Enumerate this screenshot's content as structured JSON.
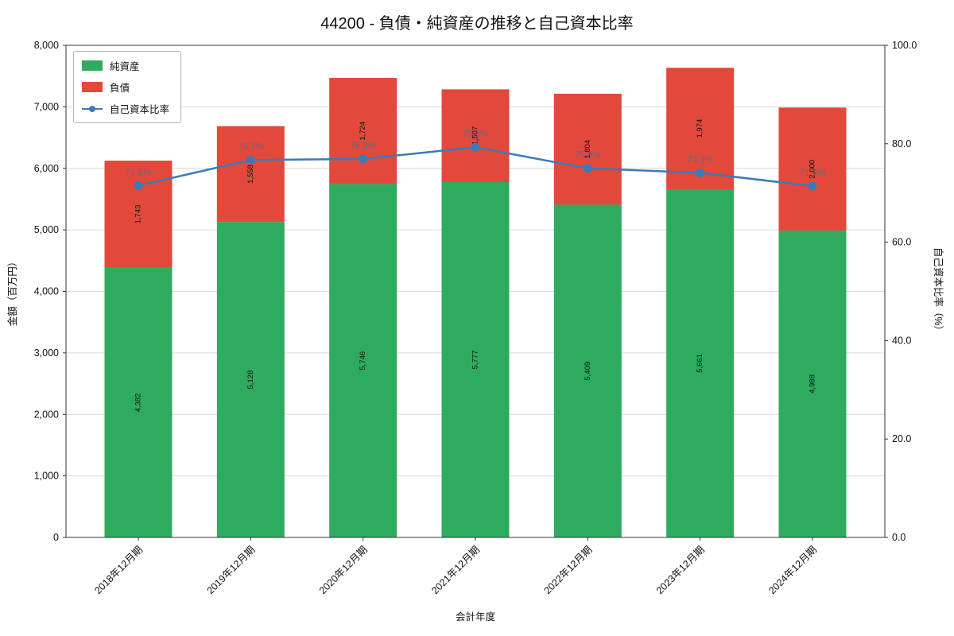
{
  "title": "44200 - 負債・純資産の推移と自己資本比率",
  "axes": {
    "x_label": "会計年度",
    "y_left_label": "金額（百万円）",
    "y_right_label": "自己資本比率（%）",
    "y_left_ticks": [
      "0",
      "1,000",
      "2,000",
      "3,000",
      "4,000",
      "5,000",
      "6,000",
      "7,000",
      "8,000"
    ],
    "y_right_ticks": [
      "0.0",
      "20.0",
      "40.0",
      "60.0",
      "80.0",
      "100.0"
    ]
  },
  "legend": {
    "items": [
      {
        "label": "純資産",
        "color": "#2eab5f",
        "marker": "square"
      },
      {
        "label": "負債",
        "color": "#e2493b",
        "marker": "square"
      },
      {
        "label": "自己資本比率",
        "color": "#3d7ab5",
        "marker": "line-dot"
      }
    ]
  },
  "chart_data": {
    "type": "bar",
    "subtype": "stacked-bars-with-line",
    "categories": [
      "2018年12月期",
      "2019年12月期",
      "2020年12月期",
      "2021年12月期",
      "2022年12月期",
      "2023年12月期",
      "2024年12月期"
    ],
    "series": [
      {
        "name": "純資産",
        "type": "bar",
        "color": "#2eab5f",
        "values": [
          4382,
          5128,
          5746,
          5777,
          5409,
          5661,
          4988
        ],
        "labels": [
          "4,382",
          "5,128",
          "5,746",
          "5,777",
          "5,409",
          "5,661",
          "4,988"
        ]
      },
      {
        "name": "負債",
        "type": "bar",
        "color": "#e2493b",
        "values": [
          1743,
          1558,
          1724,
          1507,
          1804,
          1974,
          2000
        ],
        "labels": [
          "1,743",
          "1,558",
          "1,724",
          "1,507",
          "1,804",
          "1,974",
          "2,000"
        ]
      },
      {
        "name": "自己資本比率",
        "type": "line",
        "color": "#3d7ab5",
        "values": [
          71.5,
          76.7,
          76.9,
          79.3,
          75.0,
          74.1,
          71.4
        ],
        "labels": [
          "71.5%",
          "76.7%",
          "76.9%",
          "79.3%",
          "75.0%",
          "74.1%",
          "71.4%"
        ]
      }
    ],
    "ylim_left": [
      0,
      8000
    ],
    "ylim_right": [
      0,
      100
    ],
    "grid": "horizontal",
    "legend_position": "upper-left",
    "colors": {
      "grid": "#d9d9d9",
      "border": "#333333",
      "ratio_label": "#1f77b4"
    }
  }
}
